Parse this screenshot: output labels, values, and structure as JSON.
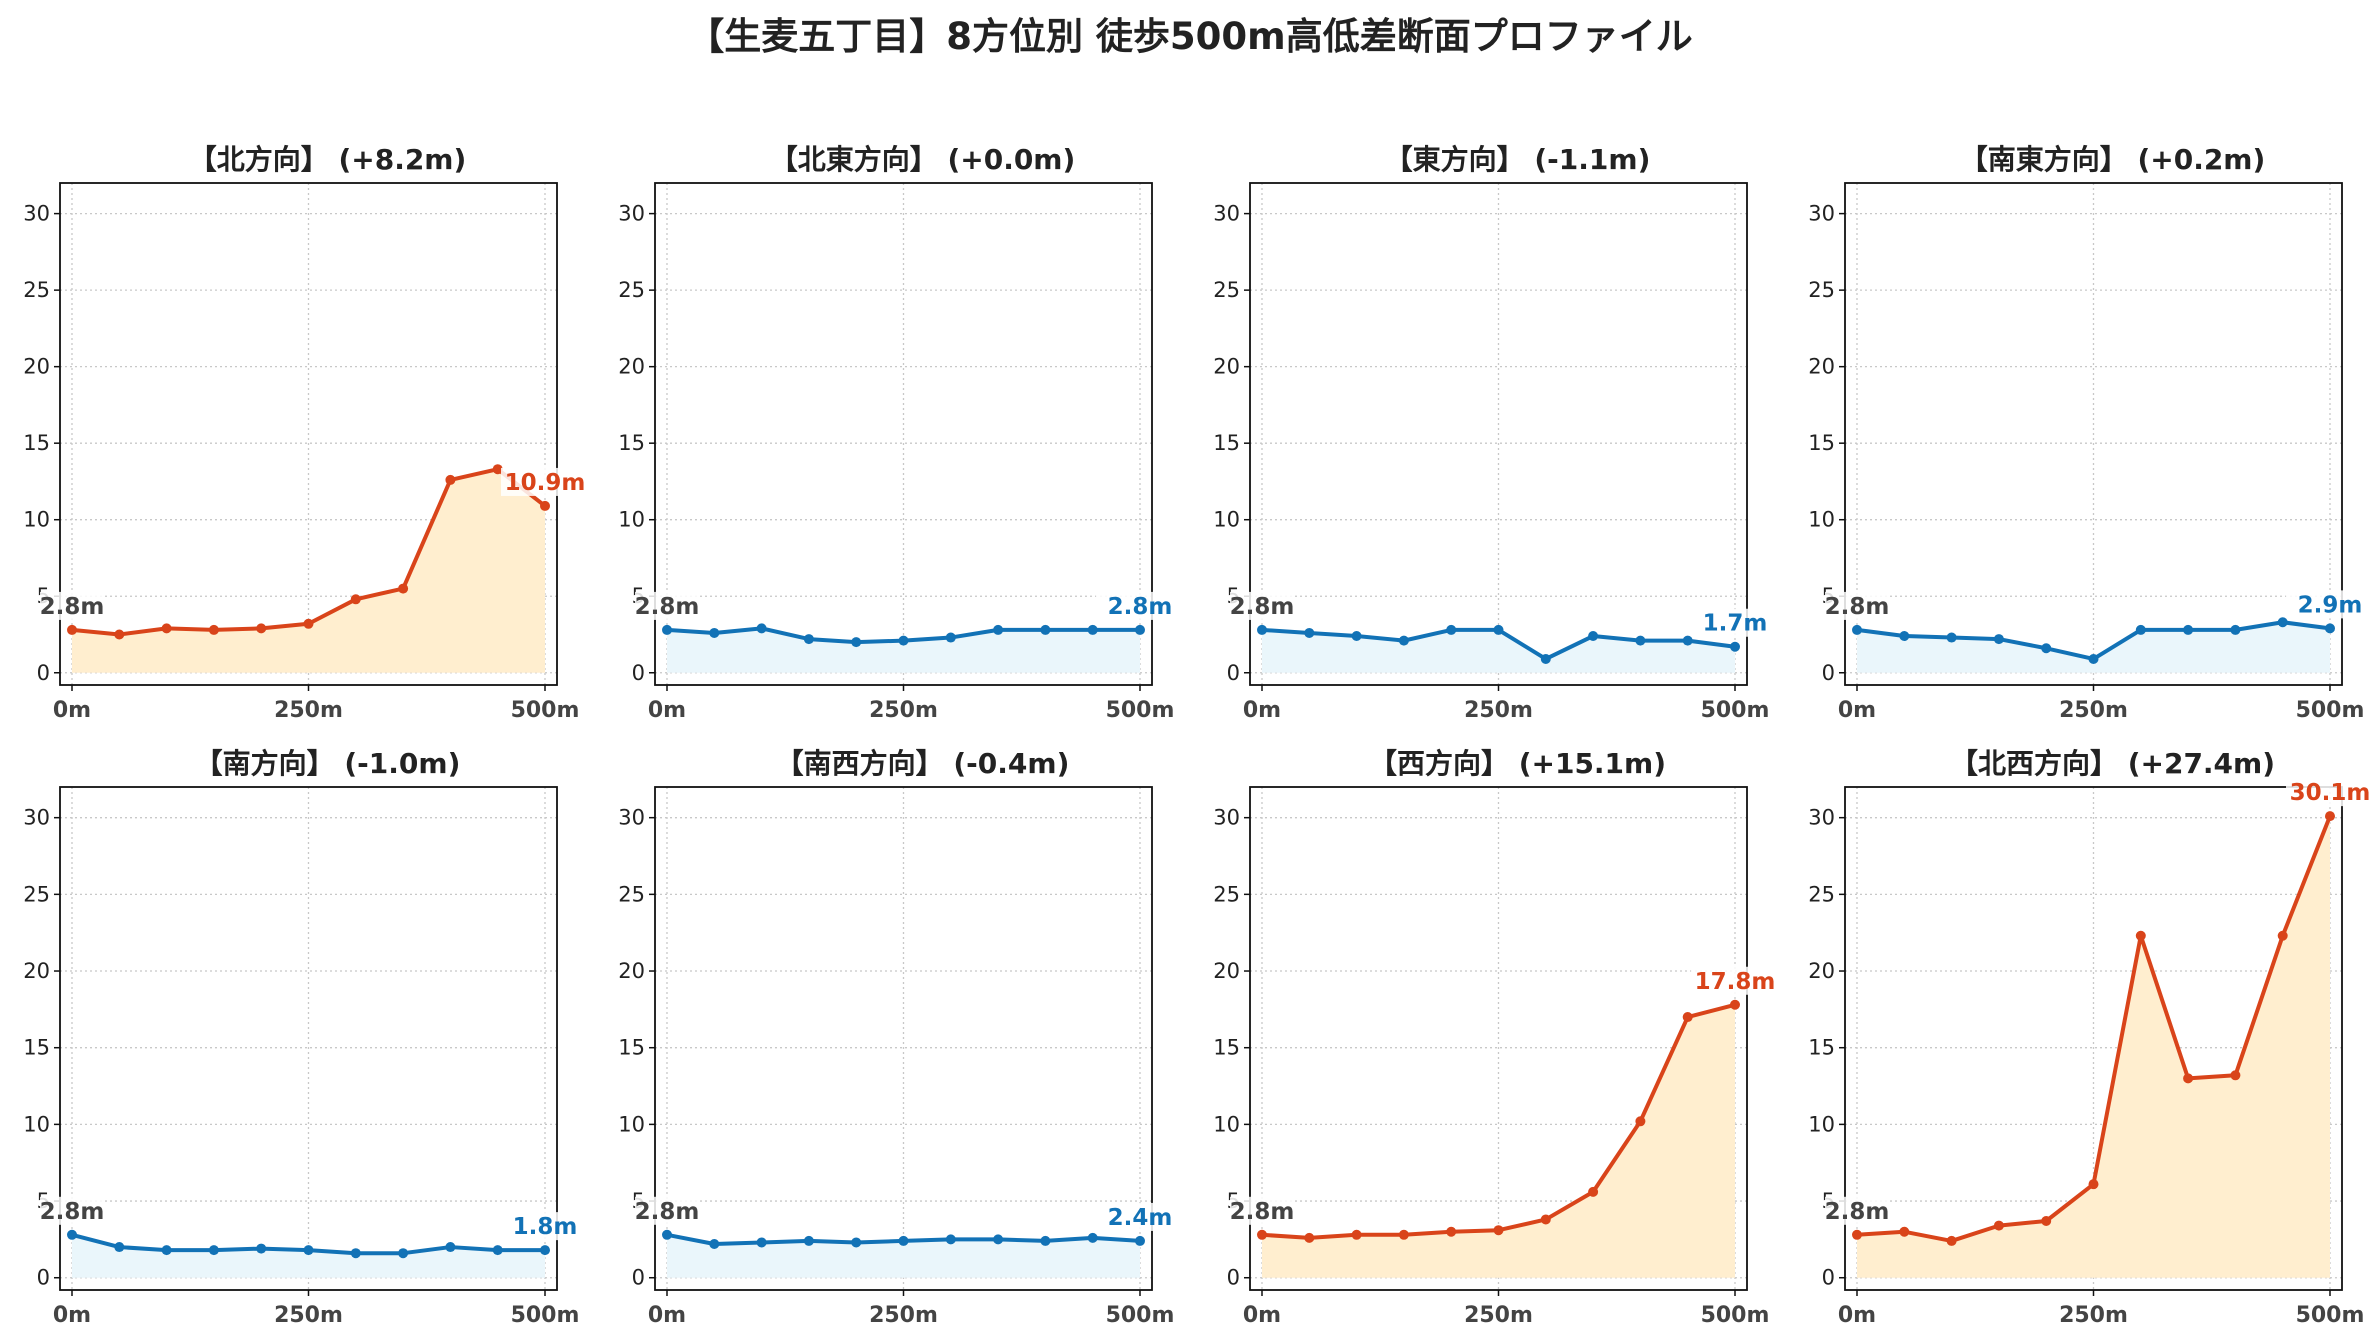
{
  "title": "【生麦五丁目】8方位別 徒歩500m高低差断面プロファイル",
  "colors": {
    "up": "#d9441a",
    "up_fill": "#ffeecf",
    "flat": "#1272b6",
    "flat_fill": "#eaf6fb",
    "start_label": "#444444",
    "grid": "#c8c8c8"
  },
  "chart_data": [
    {
      "type": "area",
      "title": "【北方向】 (+8.2m)",
      "trend": "up",
      "x": [
        0,
        50,
        100,
        150,
        200,
        250,
        300,
        350,
        400,
        450,
        500
      ],
      "y": [
        2.8,
        2.5,
        2.9,
        2.8,
        2.9,
        3.2,
        4.8,
        5.5,
        12.6,
        13.3,
        10.9
      ],
      "ylim": [
        0,
        32
      ],
      "xlim": [
        0,
        500
      ],
      "yticks": [
        "0",
        "5",
        "10",
        "15",
        "20",
        "25",
        "30"
      ],
      "xticks": [
        "0m",
        "250m",
        "500m"
      ],
      "start_label": "2.8m",
      "end_label": "10.9m",
      "grid": true
    },
    {
      "type": "area",
      "title": "【北東方向】 (+0.0m)",
      "trend": "flat",
      "x": [
        0,
        50,
        100,
        150,
        200,
        250,
        300,
        350,
        400,
        450,
        500
      ],
      "y": [
        2.8,
        2.6,
        2.9,
        2.2,
        2.0,
        2.1,
        2.3,
        2.8,
        2.8,
        2.8,
        2.8
      ],
      "ylim": [
        0,
        32
      ],
      "xlim": [
        0,
        500
      ],
      "yticks": [
        "0",
        "5",
        "10",
        "15",
        "20",
        "25",
        "30"
      ],
      "xticks": [
        "0m",
        "250m",
        "500m"
      ],
      "start_label": "2.8m",
      "end_label": "2.8m",
      "grid": true
    },
    {
      "type": "area",
      "title": "【東方向】 (-1.1m)",
      "trend": "flat",
      "x": [
        0,
        50,
        100,
        150,
        200,
        250,
        300,
        350,
        400,
        450,
        500
      ],
      "y": [
        2.8,
        2.6,
        2.4,
        2.1,
        2.8,
        2.8,
        0.9,
        2.4,
        2.1,
        2.1,
        1.7
      ],
      "ylim": [
        0,
        32
      ],
      "xlim": [
        0,
        500
      ],
      "yticks": [
        "0",
        "5",
        "10",
        "15",
        "20",
        "25",
        "30"
      ],
      "xticks": [
        "0m",
        "250m",
        "500m"
      ],
      "start_label": "2.8m",
      "end_label": "1.7m",
      "grid": true
    },
    {
      "type": "area",
      "title": "【南東方向】 (+0.2m)",
      "trend": "flat",
      "x": [
        0,
        50,
        100,
        150,
        200,
        250,
        300,
        350,
        400,
        450,
        500
      ],
      "y": [
        2.8,
        2.4,
        2.3,
        2.2,
        1.6,
        0.9,
        2.8,
        2.8,
        2.8,
        3.3,
        2.9
      ],
      "ylim": [
        0,
        32
      ],
      "xlim": [
        0,
        500
      ],
      "yticks": [
        "0",
        "5",
        "10",
        "15",
        "20",
        "25",
        "30"
      ],
      "xticks": [
        "0m",
        "250m",
        "500m"
      ],
      "start_label": "2.8m",
      "end_label": "2.9m",
      "grid": true
    },
    {
      "type": "area",
      "title": "【南方向】 (-1.0m)",
      "trend": "flat",
      "x": [
        0,
        50,
        100,
        150,
        200,
        250,
        300,
        350,
        400,
        450,
        500
      ],
      "y": [
        2.8,
        2.0,
        1.8,
        1.8,
        1.9,
        1.8,
        1.6,
        1.6,
        2.0,
        1.8,
        1.8
      ],
      "ylim": [
        0,
        32
      ],
      "xlim": [
        0,
        500
      ],
      "yticks": [
        "0",
        "5",
        "10",
        "15",
        "20",
        "25",
        "30"
      ],
      "xticks": [
        "0m",
        "250m",
        "500m"
      ],
      "start_label": "2.8m",
      "end_label": "1.8m",
      "grid": true
    },
    {
      "type": "area",
      "title": "【南西方向】 (-0.4m)",
      "trend": "flat",
      "x": [
        0,
        50,
        100,
        150,
        200,
        250,
        300,
        350,
        400,
        450,
        500
      ],
      "y": [
        2.8,
        2.2,
        2.3,
        2.4,
        2.3,
        2.4,
        2.5,
        2.5,
        2.4,
        2.6,
        2.4
      ],
      "ylim": [
        0,
        32
      ],
      "xlim": [
        0,
        500
      ],
      "yticks": [
        "0",
        "5",
        "10",
        "15",
        "20",
        "25",
        "30"
      ],
      "xticks": [
        "0m",
        "250m",
        "500m"
      ],
      "start_label": "2.8m",
      "end_label": "2.4m",
      "grid": true
    },
    {
      "type": "area",
      "title": "【西方向】 (+15.1m)",
      "trend": "up",
      "x": [
        0,
        50,
        100,
        150,
        200,
        250,
        300,
        350,
        400,
        450,
        500
      ],
      "y": [
        2.8,
        2.6,
        2.8,
        2.8,
        3.0,
        3.1,
        3.8,
        5.6,
        10.2,
        17.0,
        17.8
      ],
      "ylim": [
        0,
        32
      ],
      "xlim": [
        0,
        500
      ],
      "yticks": [
        "0",
        "5",
        "10",
        "15",
        "20",
        "25",
        "30"
      ],
      "xticks": [
        "0m",
        "250m",
        "500m"
      ],
      "start_label": "2.8m",
      "end_label": "17.8m",
      "grid": true
    },
    {
      "type": "area",
      "title": "【北西方向】 (+27.4m)",
      "trend": "up",
      "x": [
        0,
        50,
        100,
        150,
        200,
        250,
        300,
        350,
        400,
        450,
        500
      ],
      "y": [
        2.8,
        3.0,
        2.4,
        3.4,
        3.7,
        6.1,
        22.3,
        13.0,
        13.2,
        22.3,
        30.1
      ],
      "ylim": [
        0,
        32
      ],
      "xlim": [
        0,
        500
      ],
      "yticks": [
        "0",
        "5",
        "10",
        "15",
        "20",
        "25",
        "30"
      ],
      "xticks": [
        "0m",
        "250m",
        "500m"
      ],
      "start_label": "2.8m",
      "end_label": "30.1m",
      "grid": true
    }
  ]
}
